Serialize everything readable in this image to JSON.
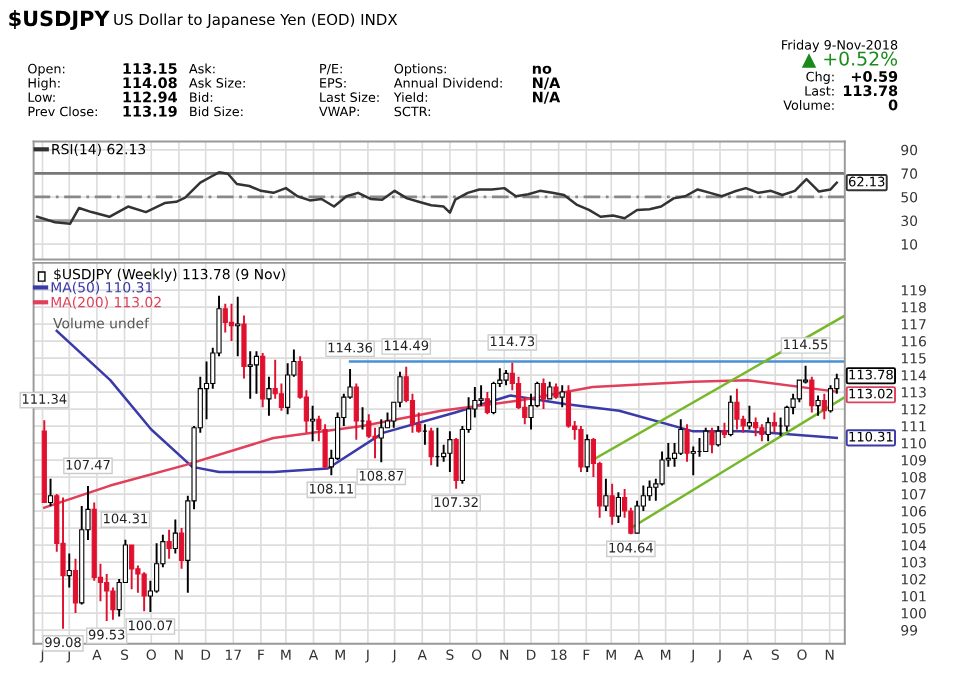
{
  "chart_data": [
    {
      "type": "other",
      "title": "$USDJPY",
      "subtitle": "US Dollar to Japanese Yen (EOD) INDX",
      "annotations": [
        "Open:",
        "High:",
        "Low:",
        "Prev Close:",
        "113.15",
        "114.08",
        "112.94",
        "113.19",
        "Ask:",
        "Ask Size:",
        "Bid:",
        "Bid Size:",
        "P/E:",
        "EPS:",
        "Last Size:",
        "VWAP:",
        "Options:",
        "Annual Dividend:",
        "Yield:",
        "SCTR:",
        "no",
        "N/A",
        "N/A",
        "Friday 9-Nov-2018",
        "▲ +0.52%",
        "Chg:",
        "+0.59",
        "Last:",
        "113.78",
        "Volume:",
        "0"
      ]
    },
    {
      "type": "line",
      "xlim": [
        "2016-05-22",
        "2018-11-18"
      ],
      "ylim": [
        -3,
        97
      ],
      "yticks": [
        10,
        30,
        50,
        70,
        90
      ],
      "grid": true,
      "tick_labels": "y",
      "legend": "top left",
      "xticks": [
        "2016-06-01",
        "2016-07-01",
        "2016-08-01",
        "2016-09-01",
        "2016-10-01",
        "2016-11-01",
        "2016-12-01",
        "2017-01-01",
        "2017-02-01",
        "2017-03-01",
        "2017-04-01",
        "2017-05-01",
        "2017-06-01",
        "2017-07-01",
        "2017-08-01",
        "2017-09-01",
        "2017-10-01",
        "2017-11-01",
        "2017-12-01",
        "2018-01-01",
        "2018-02-01",
        "2018-03-01",
        "2018-04-01",
        "2018-05-01",
        "2018-06-01",
        "2018-07-01",
        "2018-08-01",
        "2018-09-01",
        "2018-10-01",
        "2018-11-01"
      ],
      "ref_lines": [
        {
          "axis": "y",
          "value": 70,
          "color": "#777777",
          "line_style": "solid"
        },
        {
          "axis": "y",
          "value": 50,
          "color": "#888888",
          "line_style": "dashed"
        },
        {
          "axis": "y",
          "value": 30,
          "color": "#999999",
          "line_style": "solid"
        }
      ],
      "annotations": [
        {
          "text": "62.13",
          "x": "2018-11-09",
          "y": 62.13
        }
      ],
      "series": [
        {
          "name": "RSI(14) 62.13",
          "color": "#333333",
          "x": [
            "2016-05-26",
            "2016-06-15",
            "2016-07-02",
            "2016-07-12",
            "2016-07-26",
            "2016-08-15",
            "2016-09-05",
            "2016-09-25",
            "2016-10-16",
            "2016-10-29",
            "2016-11-08",
            "2016-11-25",
            "2016-12-09",
            "2016-12-16",
            "2016-12-26",
            "2017-01-05",
            "2017-01-19",
            "2017-02-01",
            "2017-02-15",
            "2017-03-01",
            "2017-03-14",
            "2017-03-28",
            "2017-04-10",
            "2017-04-24",
            "2017-05-08",
            "2017-05-21",
            "2017-06-04",
            "2017-06-17",
            "2017-07-01",
            "2017-07-15",
            "2017-07-28",
            "2017-08-11",
            "2017-08-25",
            "2017-09-01",
            "2017-09-07",
            "2017-09-21",
            "2017-10-04",
            "2017-10-18",
            "2017-11-01",
            "2017-11-14",
            "2017-11-28",
            "2017-12-11",
            "2017-12-25",
            "2018-01-07",
            "2018-01-21",
            "2018-02-04",
            "2018-02-17",
            "2018-03-03",
            "2018-03-16",
            "2018-03-30",
            "2018-04-13",
            "2018-04-26",
            "2018-05-10",
            "2018-05-23",
            "2018-06-06",
            "2018-06-20",
            "2018-07-03",
            "2018-07-17",
            "2018-07-30",
            "2018-08-13",
            "2018-08-27",
            "2018-09-09",
            "2018-09-23",
            "2018-10-06",
            "2018-10-20",
            "2018-11-02",
            "2018-11-09"
          ],
          "values": [
            33.2,
            28.6,
            27.4,
            40.7,
            37.2,
            33.2,
            41.9,
            37.2,
            44.8,
            45.9,
            49.4,
            62.2,
            68.0,
            70.9,
            69.7,
            61.0,
            59.3,
            55.2,
            53.5,
            57.5,
            50.6,
            47.1,
            48.3,
            41.9,
            50.6,
            53.5,
            48.3,
            47.7,
            55.2,
            48.8,
            45.9,
            43.0,
            41.9,
            36.7,
            47.7,
            53.5,
            56.4,
            56.4,
            57.5,
            50.6,
            52.3,
            55.2,
            53.5,
            51.7,
            43.6,
            39.0,
            33.2,
            34.3,
            32.0,
            39.0,
            39.6,
            41.9,
            48.8,
            50.6,
            56.4,
            53.5,
            50.6,
            54.6,
            57.5,
            53.5,
            55.2,
            51.7,
            55.2,
            65.1,
            54.6,
            56.4,
            62.13
          ]
        }
      ]
    },
    {
      "type": "candlestick",
      "xlim": [
        "2016-05-22",
        "2018-11-18"
      ],
      "ylim": [
        98.2,
        120.6
      ],
      "yticks": [
        99,
        100,
        101,
        102,
        103,
        104,
        105,
        106,
        107,
        108,
        109,
        110,
        111,
        112,
        113,
        114,
        115,
        116,
        117,
        118,
        119
      ],
      "grid": true,
      "legend": "top left",
      "colors": [
        "#e0102f",
        "#ffffff",
        "#e0102f",
        "#e0102f",
        "#ffffff",
        "#e0102f",
        "#ffffff",
        "#ffffff",
        "#e0102f",
        "#e0102f",
        "#e0102f",
        "#e0102f",
        "#ffffff",
        "#ffffff",
        "#e0102f",
        "#e0102f",
        "#e0102f",
        "#ffffff",
        "#ffffff",
        "#ffffff",
        "#e0102f",
        "#ffffff",
        "#e0102f",
        "#ffffff",
        "#ffffff",
        "#ffffff",
        "#ffffff",
        "#ffffff",
        "#ffffff",
        "#e0102f",
        "#e0102f",
        "#ffffff",
        "#e0102f",
        "#ffffff",
        "#ffffff",
        "#e0102f",
        "#ffffff",
        "#e0102f",
        "#e0102f",
        "#ffffff",
        "#ffffff",
        "#e0102f",
        "#e0102f",
        "#ffffff",
        "#e0102f",
        "#e0102f",
        "#ffffff",
        "#ffffff",
        "#ffffff",
        "#ffffff",
        "#e0102f",
        "#000000",
        "#e0102f",
        "#e0102f",
        "#ffffff",
        "#ffffff",
        "#ffffff",
        "#ffffff",
        "#e0102f",
        "#e0102f",
        "#e0102f",
        "#000000",
        "#e0102f",
        "#000000",
        "#ffffff",
        "#ffffff",
        "#e0102f",
        "#ffffff",
        "#ffffff",
        "#ffffff",
        "#ffffff",
        "#e0102f",
        "#ffffff",
        "#ffffff",
        "#ffffff",
        "#e0102f",
        "#e0102f",
        "#e0102f",
        "#ffffff",
        "#ffffff",
        "#e0102f",
        "#ffffff",
        "#e0102f",
        "#ffffff",
        "#e0102f",
        "#e0102f",
        "#e0102f",
        "#ffffff",
        "#e0102f",
        "#e0102f",
        "#ffffff",
        "#e0102f",
        "#ffffff",
        "#e0102f",
        "#e0102f",
        "#ffffff",
        "#ffffff",
        "#ffffff",
        "#ffffff",
        "#ffffff",
        "#ffffff",
        "#ffffff",
        "#ffffff",
        "#e0102f",
        "#ffffff",
        "#000000",
        "#ffffff",
        "#e0102f",
        "#ffffff",
        "#e0102f",
        "#ffffff",
        "#e0102f",
        "#e0102f",
        "#ffffff",
        "#e0102f",
        "#e0102f",
        "#ffffff",
        "#e0102f",
        "#000000",
        "#ffffff",
        "#ffffff",
        "#ffffff",
        "#ffffff",
        "#e0102f",
        "#ffffff",
        "#e0102f",
        "#ffffff",
        "#ffffff"
      ],
      "xticks": [
        {
          "value": "2016-06-01",
          "label": "J"
        },
        {
          "value": "2016-07-01",
          "label": "J"
        },
        {
          "value": "2016-08-01",
          "label": "A"
        },
        {
          "value": "2016-09-01",
          "label": "S"
        },
        {
          "value": "2016-10-01",
          "label": "O"
        },
        {
          "value": "2016-11-01",
          "label": "N"
        },
        {
          "value": "2016-12-01",
          "label": "D"
        },
        {
          "value": "2017-01-01",
          "label": "17"
        },
        {
          "value": "2017-02-01",
          "label": "F"
        },
        {
          "value": "2017-03-01",
          "label": "M"
        },
        {
          "value": "2017-04-01",
          "label": "A"
        },
        {
          "value": "2017-05-01",
          "label": "M"
        },
        {
          "value": "2017-06-01",
          "label": "J"
        },
        {
          "value": "2017-07-01",
          "label": "J"
        },
        {
          "value": "2017-08-01",
          "label": "A"
        },
        {
          "value": "2017-09-01",
          "label": "S"
        },
        {
          "value": "2017-10-01",
          "label": "O"
        },
        {
          "value": "2017-11-01",
          "label": "N"
        },
        {
          "value": "2017-12-01",
          "label": "D"
        },
        {
          "value": "2018-01-01",
          "label": "18"
        },
        {
          "value": "2018-02-01",
          "label": "F"
        },
        {
          "value": "2018-03-01",
          "label": "M"
        },
        {
          "value": "2018-04-01",
          "label": "A"
        },
        {
          "value": "2018-05-01",
          "label": "M"
        },
        {
          "value": "2018-06-01",
          "label": "J"
        },
        {
          "value": "2018-07-01",
          "label": "J"
        },
        {
          "value": "2018-08-01",
          "label": "A"
        },
        {
          "value": "2018-09-01",
          "label": "S"
        },
        {
          "value": "2018-10-01",
          "label": "O"
        },
        {
          "value": "2018-11-01",
          "label": "N"
        }
      ],
      "x": [
        "2016-06-03",
        "2016-06-10",
        "2016-06-17",
        "2016-06-24",
        "2016-07-01",
        "2016-07-08",
        "2016-07-15",
        "2016-07-22",
        "2016-07-29",
        "2016-08-05",
        "2016-08-12",
        "2016-08-19",
        "2016-08-26",
        "2016-09-02",
        "2016-09-09",
        "2016-09-16",
        "2016-09-23",
        "2016-09-30",
        "2016-10-07",
        "2016-10-14",
        "2016-10-21",
        "2016-10-28",
        "2016-11-04",
        "2016-11-11",
        "2016-11-18",
        "2016-11-25",
        "2016-12-02",
        "2016-12-09",
        "2016-12-16",
        "2016-12-23",
        "2016-12-30",
        "2017-01-06",
        "2017-01-13",
        "2017-01-20",
        "2017-01-27",
        "2017-02-03",
        "2017-02-10",
        "2017-02-17",
        "2017-02-24",
        "2017-03-03",
        "2017-03-10",
        "2017-03-17",
        "2017-03-24",
        "2017-03-31",
        "2017-04-07",
        "2017-04-14",
        "2017-04-21",
        "2017-04-28",
        "2017-05-05",
        "2017-05-12",
        "2017-05-19",
        "2017-05-26",
        "2017-06-02",
        "2017-06-09",
        "2017-06-16",
        "2017-06-23",
        "2017-06-30",
        "2017-07-07",
        "2017-07-14",
        "2017-07-21",
        "2017-07-28",
        "2017-08-04",
        "2017-08-11",
        "2017-08-18",
        "2017-08-25",
        "2017-09-01",
        "2017-09-08",
        "2017-09-15",
        "2017-09-22",
        "2017-09-29",
        "2017-10-06",
        "2017-10-13",
        "2017-10-20",
        "2017-10-27",
        "2017-11-03",
        "2017-11-10",
        "2017-11-17",
        "2017-11-24",
        "2017-12-01",
        "2017-12-08",
        "2017-12-15",
        "2017-12-22",
        "2017-12-29",
        "2018-01-05",
        "2018-01-12",
        "2018-01-19",
        "2018-01-26",
        "2018-02-02",
        "2018-02-09",
        "2018-02-16",
        "2018-02-23",
        "2018-03-02",
        "2018-03-09",
        "2018-03-16",
        "2018-03-23",
        "2018-03-30",
        "2018-04-06",
        "2018-04-13",
        "2018-04-20",
        "2018-04-27",
        "2018-05-04",
        "2018-05-11",
        "2018-05-18",
        "2018-05-25",
        "2018-06-01",
        "2018-06-08",
        "2018-06-15",
        "2018-06-22",
        "2018-06-29",
        "2018-07-06",
        "2018-07-13",
        "2018-07-20",
        "2018-07-27",
        "2018-08-03",
        "2018-08-10",
        "2018-08-17",
        "2018-08-24",
        "2018-08-31",
        "2018-09-07",
        "2018-09-14",
        "2018-09-21",
        "2018-09-28",
        "2018-10-05",
        "2018-10-12",
        "2018-10-19",
        "2018-10-26",
        "2018-11-02",
        "2018-11-09"
      ],
      "ohlc": [
        [
          110.7,
          111.34,
          106.5,
          106.5
        ],
        [
          106.5,
          107.9,
          106.3,
          106.9
        ],
        [
          106.9,
          107.0,
          103.6,
          104.1
        ],
        [
          104.1,
          106.8,
          99.08,
          102.2
        ],
        [
          102.2,
          103.5,
          101.5,
          102.5
        ],
        [
          102.5,
          103.2,
          100.0,
          100.6
        ],
        [
          100.6,
          106.3,
          100.5,
          104.9
        ],
        [
          104.9,
          107.47,
          104.3,
          106.1
        ],
        [
          106.1,
          106.5,
          101.9,
          102.1
        ],
        [
          102.1,
          102.9,
          100.7,
          101.8
        ],
        [
          101.8,
          102.3,
          99.53,
          101.3
        ],
        [
          101.3,
          101.5,
          99.6,
          100.2
        ],
        [
          100.2,
          102.0,
          99.8,
          101.8
        ],
        [
          101.8,
          104.31,
          101.8,
          104.0
        ],
        [
          104.0,
          104.0,
          101.4,
          102.6
        ],
        [
          102.6,
          102.8,
          101.2,
          102.3
        ],
        [
          102.3,
          102.4,
          100.1,
          101.0
        ],
        [
          101.0,
          101.9,
          100.07,
          101.3
        ],
        [
          101.3,
          104.1,
          101.2,
          102.9
        ],
        [
          102.9,
          104.6,
          102.7,
          104.2
        ],
        [
          104.2,
          104.9,
          103.2,
          103.8
        ],
        [
          103.8,
          105.5,
          103.5,
          104.7
        ],
        [
          104.7,
          105.0,
          102.6,
          103.1
        ],
        [
          103.1,
          106.9,
          101.2,
          106.6
        ],
        [
          106.6,
          111.0,
          106.1,
          110.9
        ],
        [
          110.9,
          113.9,
          110.6,
          113.2
        ],
        [
          113.2,
          114.8,
          111.4,
          113.5
        ],
        [
          113.5,
          115.6,
          113.2,
          115.3
        ],
        [
          115.3,
          118.66,
          115.1,
          117.9
        ],
        [
          117.9,
          118.2,
          116.5,
          117.1
        ],
        [
          117.1,
          118.2,
          116.0,
          116.9
        ],
        [
          116.9,
          118.6,
          115.1,
          117.0
        ],
        [
          117.0,
          117.5,
          113.8,
          114.5
        ],
        [
          114.5,
          115.4,
          112.6,
          114.6
        ],
        [
          114.6,
          115.4,
          112.9,
          115.1
        ],
        [
          115.1,
          115.3,
          112.1,
          112.6
        ],
        [
          112.6,
          113.9,
          111.6,
          113.2
        ],
        [
          113.2,
          114.9,
          112.6,
          112.9
        ],
        [
          112.9,
          113.5,
          111.9,
          112.1
        ],
        [
          112.1,
          114.7,
          111.7,
          114.0
        ],
        [
          114.0,
          115.5,
          113.9,
          114.8
        ],
        [
          114.8,
          115.1,
          112.6,
          112.7
        ],
        [
          112.7,
          113.1,
          110.6,
          111.3
        ],
        [
          111.3,
          112.2,
          110.1,
          111.4
        ],
        [
          111.4,
          111.6,
          110.1,
          110.8
        ],
        [
          110.8,
          111.1,
          108.5,
          108.6
        ],
        [
          108.6,
          109.6,
          108.11,
          109.1
        ],
        [
          109.1,
          111.8,
          109.0,
          111.5
        ],
        [
          111.5,
          112.9,
          111.0,
          112.7
        ],
        [
          112.7,
          114.36,
          112.6,
          113.3
        ],
        [
          113.3,
          113.5,
          110.2,
          111.3
        ],
        [
          111.3,
          112.1,
          110.8,
          111.3
        ],
        [
          111.3,
          111.7,
          110.3,
          110.4
        ],
        [
          110.4,
          110.9,
          109.1,
          110.3
        ],
        [
          110.3,
          111.4,
          108.87,
          110.9
        ],
        [
          110.9,
          111.8,
          110.9,
          111.3
        ],
        [
          111.3,
          112.4,
          110.9,
          112.4
        ],
        [
          112.4,
          114.2,
          112.1,
          113.9
        ],
        [
          113.9,
          114.49,
          112.4,
          112.5
        ],
        [
          112.5,
          112.9,
          110.6,
          111.1
        ],
        [
          111.1,
          111.8,
          110.6,
          110.7
        ],
        [
          110.7,
          111.1,
          109.9,
          110.7
        ],
        [
          110.7,
          110.9,
          108.7,
          109.2
        ],
        [
          109.2,
          110.9,
          108.6,
          109.2
        ],
        [
          109.2,
          109.9,
          108.9,
          109.4
        ],
        [
          109.4,
          110.7,
          108.3,
          110.2
        ],
        [
          110.2,
          110.3,
          107.32,
          107.8
        ],
        [
          107.8,
          111.0,
          107.6,
          110.8
        ],
        [
          110.8,
          112.7,
          110.6,
          112.0
        ],
        [
          112.0,
          113.3,
          111.5,
          112.5
        ],
        [
          112.5,
          113.4,
          112.2,
          112.6
        ],
        [
          112.6,
          113.0,
          111.7,
          111.8
        ],
        [
          111.8,
          113.6,
          111.7,
          113.5
        ],
        [
          113.5,
          114.4,
          113.3,
          113.7
        ],
        [
          113.7,
          114.3,
          113.4,
          114.1
        ],
        [
          114.1,
          114.73,
          113.1,
          113.5
        ],
        [
          113.5,
          113.9,
          112.0,
          112.1
        ],
        [
          112.1,
          112.7,
          111.1,
          111.5
        ],
        [
          111.5,
          112.9,
          110.8,
          112.2
        ],
        [
          112.2,
          113.6,
          112.1,
          113.5
        ],
        [
          113.5,
          113.8,
          112.0,
          112.6
        ],
        [
          112.6,
          113.6,
          112.6,
          113.3
        ],
        [
          113.3,
          113.5,
          112.6,
          112.7
        ],
        [
          112.7,
          113.4,
          112.1,
          113.0
        ],
        [
          113.0,
          113.4,
          110.9,
          111.0
        ],
        [
          111.0,
          111.3,
          110.2,
          110.8
        ],
        [
          110.8,
          111.0,
          108.3,
          108.6
        ],
        [
          108.6,
          110.5,
          108.3,
          110.2
        ],
        [
          110.2,
          110.3,
          108.0,
          108.8
        ],
        [
          108.8,
          108.9,
          105.6,
          106.3
        ],
        [
          106.3,
          107.9,
          106.0,
          106.9
        ],
        [
          106.9,
          107.6,
          105.2,
          105.7
        ],
        [
          105.7,
          107.1,
          105.3,
          106.8
        ],
        [
          106.8,
          107.3,
          105.6,
          106.0
        ],
        [
          106.0,
          106.2,
          104.64,
          104.7
        ],
        [
          104.7,
          106.6,
          104.7,
          106.3
        ],
        [
          106.3,
          107.5,
          106.0,
          106.9
        ],
        [
          106.9,
          107.8,
          106.6,
          107.4
        ],
        [
          107.4,
          107.9,
          106.6,
          107.6
        ],
        [
          107.6,
          109.5,
          107.5,
          109.0
        ],
        [
          109.0,
          110.0,
          108.6,
          109.1
        ],
        [
          109.1,
          110.0,
          108.6,
          109.4
        ],
        [
          109.4,
          111.4,
          109.3,
          110.8
        ],
        [
          110.8,
          111.1,
          108.9,
          109.4
        ],
        [
          109.4,
          109.8,
          108.1,
          109.5
        ],
        [
          109.5,
          110.3,
          109.2,
          109.5
        ],
        [
          109.5,
          110.9,
          109.5,
          110.7
        ],
        [
          110.7,
          110.9,
          109.4,
          109.9
        ],
        [
          109.9,
          111.0,
          109.8,
          110.7
        ],
        [
          110.7,
          111.2,
          110.3,
          110.5
        ],
        [
          110.5,
          112.8,
          110.4,
          112.4
        ],
        [
          112.4,
          113.2,
          110.8,
          111.4
        ],
        [
          111.4,
          111.6,
          110.6,
          111.0
        ],
        [
          111.0,
          112.2,
          110.8,
          111.2
        ],
        [
          111.2,
          111.5,
          110.4,
          110.9
        ],
        [
          110.9,
          111.1,
          110.1,
          110.5
        ],
        [
          110.5,
          111.5,
          110.1,
          111.2
        ],
        [
          111.2,
          111.8,
          110.6,
          111.0
        ],
        [
          111.0,
          111.5,
          110.4,
          111.0
        ],
        [
          111.0,
          112.2,
          110.7,
          112.1
        ],
        [
          112.1,
          112.9,
          111.7,
          112.6
        ],
        [
          112.6,
          113.7,
          112.4,
          113.7
        ],
        [
          113.6,
          114.55,
          113.5,
          113.7
        ],
        [
          113.7,
          113.9,
          111.8,
          112.2
        ],
        [
          112.2,
          112.8,
          111.6,
          112.5
        ],
        [
          112.5,
          112.9,
          111.4,
          111.9
        ],
        [
          111.9,
          113.4,
          111.8,
          113.2
        ],
        [
          113.2,
          114.08,
          112.9,
          113.78
        ]
      ],
      "series": [
        {
          "type": "line",
          "name": "MA(50) 110.31",
          "color": "#3a3aa8",
          "x": [
            "2016-06-17",
            "2016-08-16",
            "2016-10-01",
            "2016-11-16",
            "2016-12-16",
            "2017-02-15",
            "2017-04-17",
            "2017-06-18",
            "2017-09-07",
            "2017-11-08",
            "2018-01-08",
            "2018-03-10",
            "2018-05-31",
            "2018-07-31",
            "2018-11-09"
          ],
          "values": [
            116.6,
            113.7,
            110.8,
            108.6,
            108.3,
            108.3,
            108.5,
            110.6,
            111.8,
            112.8,
            112.3,
            111.9,
            110.7,
            110.7,
            110.31
          ]
        },
        {
          "type": "line",
          "name": "MA(200) 113.02",
          "color": "#e0405a",
          "x": [
            "2016-06-03",
            "2016-08-16",
            "2016-11-08",
            "2017-02-15",
            "2017-05-26",
            "2017-08-22",
            "2017-11-18",
            "2018-02-08",
            "2018-05-31",
            "2018-08-01",
            "2018-11-09"
          ],
          "values": [
            106.2,
            107.5,
            108.7,
            110.3,
            111.0,
            111.9,
            112.5,
            113.3,
            113.6,
            113.7,
            113.02
          ]
        },
        {
          "type": "line",
          "color": "#4a90d9",
          "x": [
            "2017-05-12",
            "2018-11-18"
          ],
          "values": [
            114.8,
            114.8
          ]
        },
        {
          "type": "line",
          "color": "#77b82a",
          "x": [
            "2018-02-08",
            "2018-11-18"
          ],
          "values": [
            109.0,
            117.5
          ]
        },
        {
          "type": "line",
          "color": "#77b82a",
          "x": [
            "2018-03-23",
            "2018-11-18"
          ],
          "values": [
            105.0,
            112.7
          ]
        }
      ],
      "annotations": [
        "$USDJPY (Weekly) 113.78 (9 Nov)",
        "Volume undef",
        {
          "text": "111.34",
          "x": "2016-06-03",
          "y": 111.34
        },
        {
          "text": "99.08",
          "x": "2016-06-24",
          "y": 99.08
        },
        {
          "text": "107.47",
          "x": "2016-07-22",
          "y": 107.47
        },
        {
          "text": "99.53",
          "x": "2016-08-12",
          "y": 99.53
        },
        {
          "text": "104.31",
          "x": "2016-09-02",
          "y": 104.31
        },
        {
          "text": "100.07",
          "x": "2016-09-30",
          "y": 100.07
        },
        {
          "text": "114.36",
          "x": "2017-05-12",
          "y": 114.36
        },
        {
          "text": "108.11",
          "x": "2017-04-21",
          "y": 108.11
        },
        {
          "text": "114.49",
          "x": "2017-07-14",
          "y": 114.49
        },
        {
          "text": "108.87",
          "x": "2017-06-16",
          "y": 108.87
        },
        {
          "text": "107.32",
          "x": "2017-09-08",
          "y": 107.32
        },
        {
          "text": "114.73",
          "x": "2017-11-10",
          "y": 114.73
        },
        {
          "text": "104.64",
          "x": "2018-03-23",
          "y": 104.64
        },
        {
          "text": "114.55",
          "x": "2018-10-05",
          "y": 114.55
        },
        {
          "text": "113.78",
          "x": "2018-11-09",
          "y": 113.78
        },
        {
          "text": "113.02",
          "x": "2018-11-09",
          "y": 113.02
        },
        {
          "text": "110.31",
          "x": "2018-11-09",
          "y": 110.31
        }
      ]
    }
  ]
}
